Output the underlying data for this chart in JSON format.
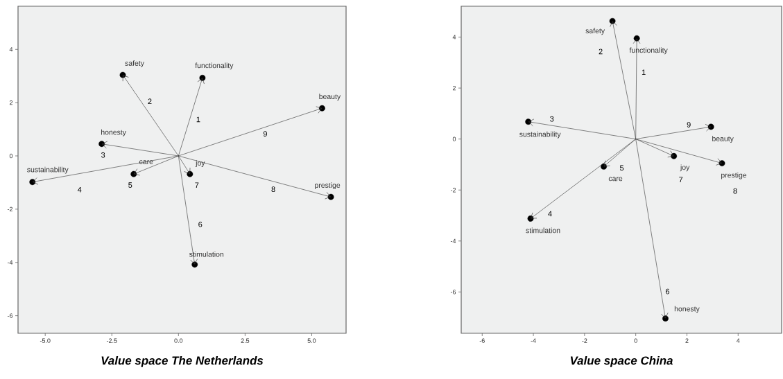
{
  "chart_data": [
    {
      "type": "scatter",
      "title": "Value space The Netherlands",
      "xlim": [
        -6.02,
        6.29
      ],
      "ylim": [
        -6.66,
        5.62
      ],
      "xticks": [
        {
          "value": -5,
          "label": "-5.0"
        },
        {
          "value": -2.5,
          "label": "-2.5"
        },
        {
          "value": 0,
          "label": "0.0"
        },
        {
          "value": 2.5,
          "label": "2.5"
        },
        {
          "value": 5,
          "label": "5.0"
        }
      ],
      "yticks": [
        -6,
        -4,
        -2,
        0,
        2,
        4
      ],
      "series": [
        {
          "type": "scatter",
          "color": "#000000",
          "marker": "circle",
          "x": [
            0.9,
            -2.09,
            -2.88,
            -5.48,
            -1.68,
            0.61,
            0.43,
            5.72,
            5.39
          ],
          "values": [
            2.93,
            3.04,
            0.45,
            -0.98,
            -0.68,
            -4.08,
            -0.68,
            -1.54,
            1.79
          ]
        }
      ],
      "annotations": [
        {
          "text": "functionality",
          "x": 0.9,
          "y": 2.93
        },
        {
          "text": "safety",
          "x": -2.09,
          "y": 3.04
        },
        {
          "text": "honesty",
          "x": -2.88,
          "y": 0.45
        },
        {
          "text": "sustainability",
          "x": -5.48,
          "y": -0.98
        },
        {
          "text": "care",
          "x": -1.68,
          "y": -0.68
        },
        {
          "text": "stimulation",
          "x": 0.61,
          "y": -4.08
        },
        {
          "text": "joy",
          "x": 0.43,
          "y": -0.68
        },
        {
          "text": "prestige",
          "x": 5.72,
          "y": -1.54
        },
        {
          "text": "beauty",
          "x": 5.39,
          "y": 1.79
        },
        "1",
        "2",
        "3",
        "4",
        "5",
        "6",
        "7",
        "8",
        "9"
      ]
    },
    {
      "type": "scatter",
      "title": "Value space China",
      "xlim": [
        -6.82,
        5.7
      ],
      "ylim": [
        -7.62,
        5.21
      ],
      "xticks": [
        -6,
        -4,
        -2,
        0,
        2,
        4
      ],
      "yticks": [
        -6,
        -4,
        -2,
        0,
        2,
        4
      ],
      "series": [
        {
          "type": "scatter",
          "color": "#000000",
          "marker": "circle",
          "x": [
            0.04,
            -0.91,
            -4.2,
            -4.11,
            -1.25,
            1.16,
            1.49,
            3.37,
            2.94
          ],
          "values": [
            3.95,
            4.63,
            0.68,
            -3.12,
            -1.08,
            -7.04,
            -0.67,
            -0.95,
            0.48
          ]
        }
      ],
      "annotations": [
        {
          "text": "functionality",
          "x": 0.04,
          "y": 3.95
        },
        {
          "text": "safety",
          "x": -0.91,
          "y": 4.63
        },
        {
          "text": "sustainability",
          "x": -4.2,
          "y": 0.68
        },
        {
          "text": "stimulation",
          "x": -4.11,
          "y": -3.12
        },
        {
          "text": "care",
          "x": -1.25,
          "y": -1.08
        },
        {
          "text": "honesty",
          "x": 1.16,
          "y": -7.04
        },
        {
          "text": "joy",
          "x": 1.49,
          "y": -0.67
        },
        {
          "text": "prestige",
          "x": 3.37,
          "y": -0.95
        },
        {
          "text": "beauty",
          "x": 2.94,
          "y": 0.48
        },
        "1",
        "2",
        "3",
        "4",
        "5",
        "6",
        "7",
        "8",
        "9"
      ]
    }
  ]
}
